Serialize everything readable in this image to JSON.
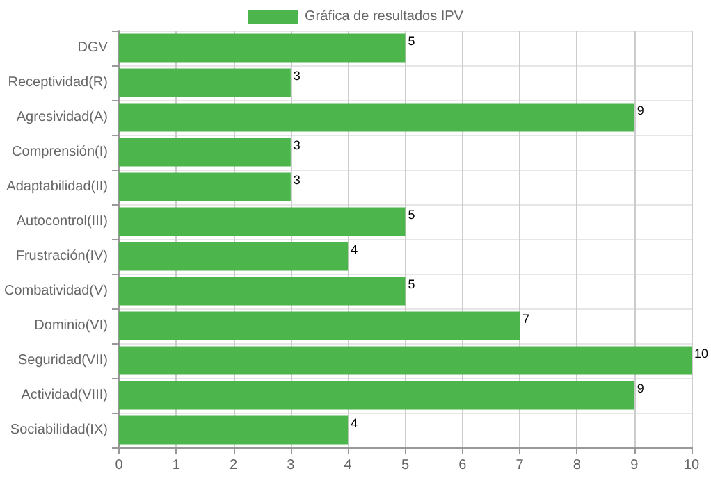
{
  "chart_data": {
    "type": "bar",
    "orientation": "horizontal",
    "categories": [
      "DGV",
      "Receptividad(R)",
      "Agresividad(A)",
      "Comprensión(I)",
      "Adaptabilidad(II)",
      "Autocontrol(III)",
      "Frustración(IV)",
      "Combatividad(V)",
      "Dominio(VI)",
      "Seguridad(VII)",
      "Actividad(VIII)",
      "Sociabilidad(IX)"
    ],
    "series": [
      {
        "name": "Gráfica de resultados IPV",
        "color": "#4cb54c",
        "values": [
          5,
          3,
          9,
          3,
          3,
          5,
          4,
          5,
          7,
          10,
          9,
          4
        ]
      }
    ],
    "xlim": [
      0,
      10
    ],
    "xticks": [
      0,
      1,
      2,
      3,
      4,
      5,
      6,
      7,
      8,
      9,
      10
    ],
    "grid": true,
    "legend": "top",
    "data_labels": true
  }
}
